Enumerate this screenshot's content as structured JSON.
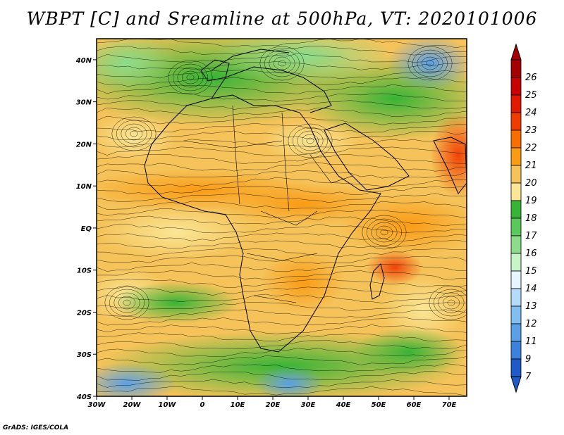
{
  "title": "WBPT [C] and Sreamline at 500hPa, VT: 2020101006",
  "credit": "GrADS: IGES/COLA",
  "map": {
    "lon_range": [
      -30,
      75
    ],
    "lat_range": [
      -40,
      45
    ],
    "lat_ticks": [
      {
        "value": 40,
        "label": "40N"
      },
      {
        "value": 30,
        "label": "30N"
      },
      {
        "value": 20,
        "label": "20N"
      },
      {
        "value": 10,
        "label": "10N"
      },
      {
        "value": 0,
        "label": "EQ"
      },
      {
        "value": -10,
        "label": "10S"
      },
      {
        "value": -20,
        "label": "20S"
      },
      {
        "value": -30,
        "label": "30S"
      },
      {
        "value": -40,
        "label": "40S"
      }
    ],
    "lon_ticks": [
      {
        "value": -30,
        "label": "30W"
      },
      {
        "value": -20,
        "label": "20W"
      },
      {
        "value": -10,
        "label": "10W"
      },
      {
        "value": 0,
        "label": "0"
      },
      {
        "value": 10,
        "label": "10E"
      },
      {
        "value": 20,
        "label": "20E"
      },
      {
        "value": 30,
        "label": "30E"
      },
      {
        "value": 40,
        "label": "40E"
      },
      {
        "value": 50,
        "label": "50E"
      },
      {
        "value": 60,
        "label": "60E"
      },
      {
        "value": 70,
        "label": "70E"
      }
    ]
  },
  "colorbar": {
    "levels": [
      {
        "label": "26",
        "color": "#a50000"
      },
      {
        "label": "25",
        "color": "#c80000"
      },
      {
        "label": "24",
        "color": "#e11900"
      },
      {
        "label": "23",
        "color": "#f03c00"
      },
      {
        "label": "22",
        "color": "#fa6e00"
      },
      {
        "label": "21",
        "color": "#fa9b14"
      },
      {
        "label": "20",
        "color": "#f5c35a"
      },
      {
        "label": "19",
        "color": "#fae696"
      },
      {
        "label": "18",
        "color": "#37b437"
      },
      {
        "label": "17",
        "color": "#5ac85a"
      },
      {
        "label": "16",
        "color": "#8cdc8c"
      },
      {
        "label": "15",
        "color": "#c8f5c8"
      },
      {
        "label": "14",
        "color": "#e6f5ff"
      },
      {
        "label": "13",
        "color": "#b4dcfa"
      },
      {
        "label": "12",
        "color": "#82bef0"
      },
      {
        "label": "11",
        "color": "#5aa0e6"
      },
      {
        "label": "9",
        "color": "#3c82dc"
      },
      {
        "label": "7",
        "color": "#1e5ac8"
      }
    ],
    "below_color": "#1e5ac8",
    "above_color": "#a50000"
  }
}
